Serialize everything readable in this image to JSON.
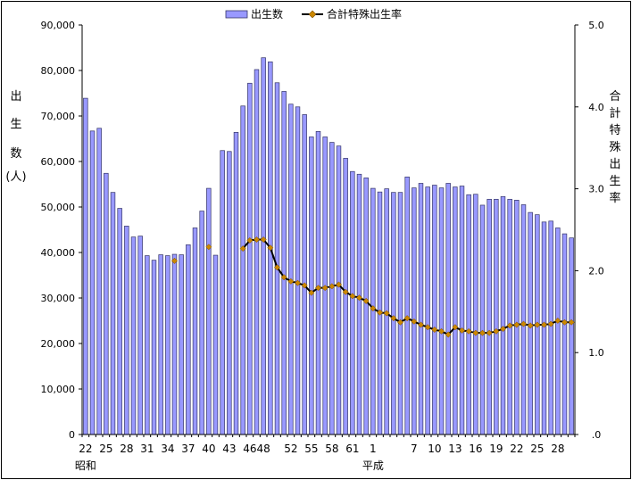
{
  "chart_data": {
    "type": "bar",
    "legend": {
      "bar_label": "出生数",
      "line_label": "合計特殊出生率",
      "placement": "top"
    },
    "ylabel_left": [
      "出",
      "生",
      "数",
      "(人)"
    ],
    "ylabel_right": [
      "合",
      "計",
      "特",
      "殊",
      "出",
      "生",
      "率"
    ],
    "y_left": {
      "min": 0,
      "max": 90000,
      "step": 10000,
      "ticks": [
        "0",
        "10,000",
        "20,000",
        "30,000",
        "40,000",
        "50,000",
        "60,000",
        "70,000",
        "80,000",
        "90,000"
      ]
    },
    "y_right": {
      "min": 0,
      "max": 5,
      "step": 1,
      "ticks": [
        ".0",
        "1.0",
        "2.0",
        "3.0",
        "4.0",
        "5.0"
      ]
    },
    "x_tick_labels": [
      {
        "i": 0,
        "label": "22"
      },
      {
        "i": 3,
        "label": "25"
      },
      {
        "i": 6,
        "label": "28"
      },
      {
        "i": 9,
        "label": "31"
      },
      {
        "i": 12,
        "label": "34"
      },
      {
        "i": 15,
        "label": "37"
      },
      {
        "i": 18,
        "label": "40"
      },
      {
        "i": 21,
        "label": "43"
      },
      {
        "i": 24,
        "label": "46"
      },
      {
        "i": 26,
        "label": "48"
      },
      {
        "i": 30,
        "label": "52"
      },
      {
        "i": 33,
        "label": "55"
      },
      {
        "i": 36,
        "label": "58"
      },
      {
        "i": 39,
        "label": "61"
      },
      {
        "i": 42,
        "label": "1"
      },
      {
        "i": 48,
        "label": "7"
      },
      {
        "i": 51,
        "label": "10"
      },
      {
        "i": 54,
        "label": "13"
      },
      {
        "i": 57,
        "label": "16"
      },
      {
        "i": 60,
        "label": "19"
      },
      {
        "i": 63,
        "label": "22"
      },
      {
        "i": 66,
        "label": "25"
      },
      {
        "i": 69,
        "label": "28"
      }
    ],
    "era_labels": [
      {
        "i": 0,
        "label": "昭和"
      },
      {
        "i": 42,
        "label": "平成"
      }
    ],
    "colors": {
      "bar_fill": "#9999ff",
      "bar_stroke": "#333366",
      "line": "#000000",
      "marker": "#cc8800"
    },
    "grid": false,
    "categories": [
      "S22",
      "S23",
      "S24",
      "S25",
      "S26",
      "S27",
      "S28",
      "S29",
      "S30",
      "S31",
      "S32",
      "S33",
      "S34",
      "S35",
      "S36",
      "S37",
      "S38",
      "S39",
      "S40",
      "S41",
      "S42",
      "S43",
      "S44",
      "S45",
      "S46",
      "S47",
      "S48",
      "S49",
      "S50",
      "S51",
      "S52",
      "S53",
      "S54",
      "S55",
      "S56",
      "S57",
      "S58",
      "S59",
      "S60",
      "S61",
      "S62",
      "S63",
      "H1",
      "H2",
      "H3",
      "H4",
      "H5",
      "H6",
      "H7",
      "H8",
      "H9",
      "H10",
      "H11",
      "H12",
      "H13",
      "H14",
      "H15",
      "H16",
      "H17",
      "H18",
      "H19",
      "H20",
      "H21",
      "H22",
      "H23",
      "H24",
      "H25",
      "H26",
      "H27",
      "H28",
      "H29",
      "H30"
    ],
    "series": [
      {
        "name": "出生数",
        "kind": "bar",
        "values": [
          73900,
          66700,
          67300,
          57400,
          53200,
          49700,
          45800,
          43400,
          43600,
          39300,
          38300,
          39500,
          39300,
          39600,
          39500,
          41700,
          45400,
          49100,
          54100,
          39400,
          62400,
          62200,
          66400,
          72200,
          77200,
          80200,
          82800,
          81900,
          77300,
          75400,
          72600,
          72000,
          70300,
          65400,
          66600,
          65400,
          64200,
          63400,
          60700,
          57800,
          57200,
          56400,
          54100,
          53300,
          54000,
          53200,
          53200,
          56600,
          54200,
          55200,
          54400,
          54800,
          54200,
          55200,
          54400,
          54600,
          52700,
          52800,
          50400,
          51700,
          51700,
          52300,
          51700,
          51500,
          50500,
          48800,
          48300,
          46700,
          46900,
          45400,
          44100,
          43200
        ]
      },
      {
        "name": "合計特殊出生率",
        "kind": "line",
        "values": [
          null,
          null,
          null,
          null,
          null,
          null,
          null,
          null,
          null,
          null,
          null,
          null,
          null,
          2.12,
          null,
          null,
          null,
          null,
          2.29,
          null,
          null,
          null,
          null,
          2.27,
          2.37,
          2.38,
          2.38,
          2.28,
          2.04,
          1.92,
          1.87,
          1.85,
          1.82,
          1.73,
          1.79,
          1.79,
          1.81,
          1.83,
          1.74,
          1.69,
          1.67,
          1.63,
          1.54,
          1.49,
          1.48,
          1.42,
          1.37,
          1.42,
          1.38,
          1.34,
          1.31,
          1.28,
          1.26,
          1.22,
          1.31,
          1.27,
          1.26,
          1.24,
          1.24,
          1.24,
          1.26,
          1.29,
          1.33,
          1.34,
          1.35,
          1.33,
          1.34,
          1.34,
          1.35,
          1.39,
          1.37,
          1.37
        ]
      }
    ]
  }
}
